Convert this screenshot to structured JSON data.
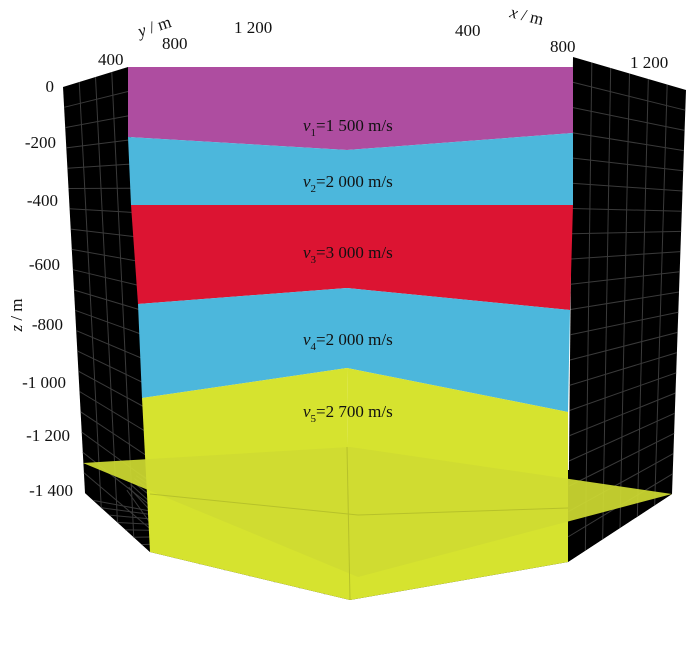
{
  "figure": {
    "y_axis": {
      "label_var": "y",
      "label_unit": " / m",
      "ticks": [
        "400",
        "800",
        "1 200"
      ]
    },
    "x_axis": {
      "label_var": "x",
      "label_unit": " / m",
      "ticks": [
        "400",
        "800",
        "1 200"
      ]
    },
    "z_axis": {
      "label_var": "z",
      "label_unit": " / m",
      "ticks": [
        "0",
        "-200",
        "-400",
        "-600",
        "-800",
        "-1 000",
        "-1 200",
        "-1 400"
      ]
    },
    "layers": [
      {
        "sub": "1",
        "value": "=1 500 m/s",
        "color": "#ae4da0"
      },
      {
        "sub": "2",
        "value": "=2 000 m/s",
        "color": "#4cb7dc"
      },
      {
        "sub": "3",
        "value": "=3 000 m/s",
        "color": "#dc1432"
      },
      {
        "sub": "4",
        "value": "=2 000 m/s",
        "color": "#4cb7dc"
      },
      {
        "sub": "5",
        "value": "=2 700 m/s",
        "color": "#d6e32f"
      }
    ],
    "colors": {
      "box_face": "#000000",
      "grid": "#3a3a3a",
      "floor": "#cfdb32"
    }
  }
}
